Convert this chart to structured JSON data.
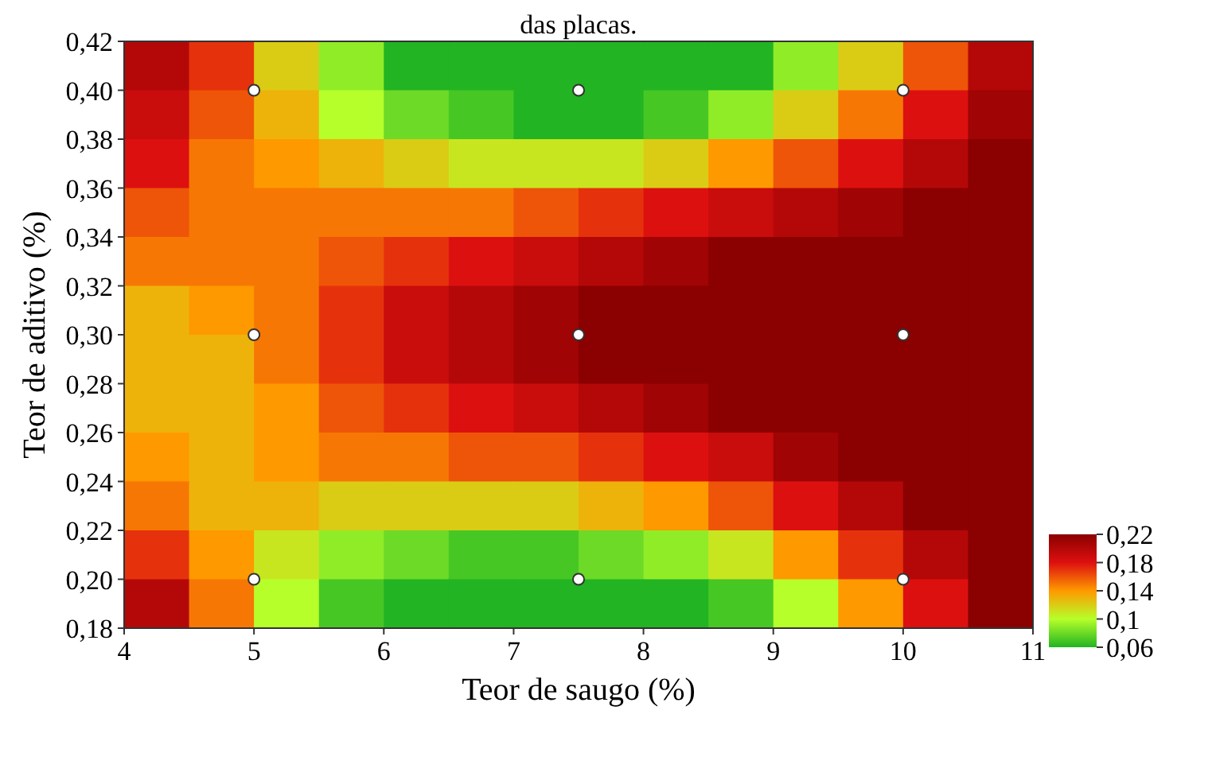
{
  "chart_data": {
    "type": "heatmap",
    "title": "das placas.",
    "xlabel": "Teor de saugo (%)",
    "ylabel": "Teor de aditivo (%)",
    "xlim": [
      4,
      11
    ],
    "xticks": [
      {
        "value": 4,
        "label": "4"
      },
      {
        "value": 5,
        "label": "5"
      },
      {
        "value": 6,
        "label": "6"
      },
      {
        "value": 7,
        "label": "7"
      },
      {
        "value": 8,
        "label": "8"
      },
      {
        "value": 9,
        "label": "9"
      },
      {
        "value": 10,
        "label": "10"
      },
      {
        "value": 11,
        "label": "11"
      }
    ],
    "ylim": [
      0.18,
      0.42
    ],
    "yticks": [
      {
        "value": 0.18,
        "label": "0,18"
      },
      {
        "value": 0.2,
        "label": "0,20"
      },
      {
        "value": 0.22,
        "label": "0,22"
      },
      {
        "value": 0.24,
        "label": "0,24"
      },
      {
        "value": 0.26,
        "label": "0,26"
      },
      {
        "value": 0.28,
        "label": "0,28"
      },
      {
        "value": 0.3,
        "label": "0,30"
      },
      {
        "value": 0.32,
        "label": "0,32"
      },
      {
        "value": 0.34,
        "label": "0,34"
      },
      {
        "value": 0.36,
        "label": "0,36"
      },
      {
        "value": 0.38,
        "label": "0,38"
      },
      {
        "value": 0.4,
        "label": "0,40"
      },
      {
        "value": 0.42,
        "label": "0,42"
      }
    ],
    "cticks": [
      {
        "value": 0.22,
        "label": "0,22"
      },
      {
        "value": 0.18,
        "label": "0,18"
      },
      {
        "value": 0.14,
        "label": "0,14"
      },
      {
        "value": 0.1,
        "label": "0,1"
      },
      {
        "value": 0.06,
        "label": "0,06"
      }
    ],
    "clim": [
      0.06,
      0.22
    ],
    "colors": [
      "#8b0000",
      "#dd1010",
      "#ff9900",
      "#b6ff2a",
      "#22b422"
    ],
    "cells": [
      [
        0.2,
        0.17,
        0.12,
        0.09,
        0.06,
        0.06,
        0.06,
        0.06,
        0.06,
        0.06,
        0.09,
        0.12,
        0.16,
        0.2
      ],
      [
        0.19,
        0.16,
        0.13,
        0.1,
        0.08,
        0.07,
        0.06,
        0.06,
        0.07,
        0.09,
        0.12,
        0.15,
        0.18,
        0.21
      ],
      [
        0.18,
        0.15,
        0.14,
        0.13,
        0.12,
        0.11,
        0.11,
        0.11,
        0.12,
        0.14,
        0.16,
        0.18,
        0.2,
        0.22
      ],
      [
        0.16,
        0.15,
        0.15,
        0.15,
        0.15,
        0.15,
        0.16,
        0.17,
        0.18,
        0.19,
        0.2,
        0.21,
        0.22,
        0.22
      ],
      [
        0.15,
        0.15,
        0.15,
        0.16,
        0.17,
        0.18,
        0.19,
        0.2,
        0.21,
        0.22,
        0.22,
        0.22,
        0.22,
        0.22
      ],
      [
        0.13,
        0.14,
        0.15,
        0.17,
        0.19,
        0.2,
        0.21,
        0.22,
        0.22,
        0.22,
        0.22,
        0.22,
        0.22,
        0.22
      ],
      [
        0.13,
        0.13,
        0.15,
        0.17,
        0.19,
        0.2,
        0.21,
        0.22,
        0.22,
        0.22,
        0.22,
        0.22,
        0.22,
        0.22
      ],
      [
        0.13,
        0.13,
        0.14,
        0.16,
        0.17,
        0.18,
        0.19,
        0.2,
        0.21,
        0.22,
        0.22,
        0.22,
        0.22,
        0.22
      ],
      [
        0.14,
        0.13,
        0.14,
        0.15,
        0.15,
        0.16,
        0.16,
        0.17,
        0.18,
        0.19,
        0.21,
        0.22,
        0.22,
        0.22
      ],
      [
        0.15,
        0.13,
        0.13,
        0.12,
        0.12,
        0.12,
        0.12,
        0.13,
        0.14,
        0.16,
        0.18,
        0.2,
        0.22,
        0.22
      ],
      [
        0.17,
        0.14,
        0.11,
        0.09,
        0.08,
        0.07,
        0.07,
        0.08,
        0.09,
        0.11,
        0.14,
        0.17,
        0.2,
        0.22
      ],
      [
        0.2,
        0.15,
        0.1,
        0.07,
        0.06,
        0.06,
        0.06,
        0.06,
        0.06,
        0.07,
        0.1,
        0.14,
        0.18,
        0.22
      ]
    ],
    "series": [
      {
        "type": "scatter",
        "color": "#ffffff",
        "marker": "circle",
        "x": [
          5,
          7.5,
          10,
          5,
          7.5,
          10,
          5,
          7.5,
          10
        ],
        "values": [
          0.4,
          0.4,
          0.4,
          0.3,
          0.3,
          0.3,
          0.2,
          0.2,
          0.2
        ]
      }
    ]
  }
}
